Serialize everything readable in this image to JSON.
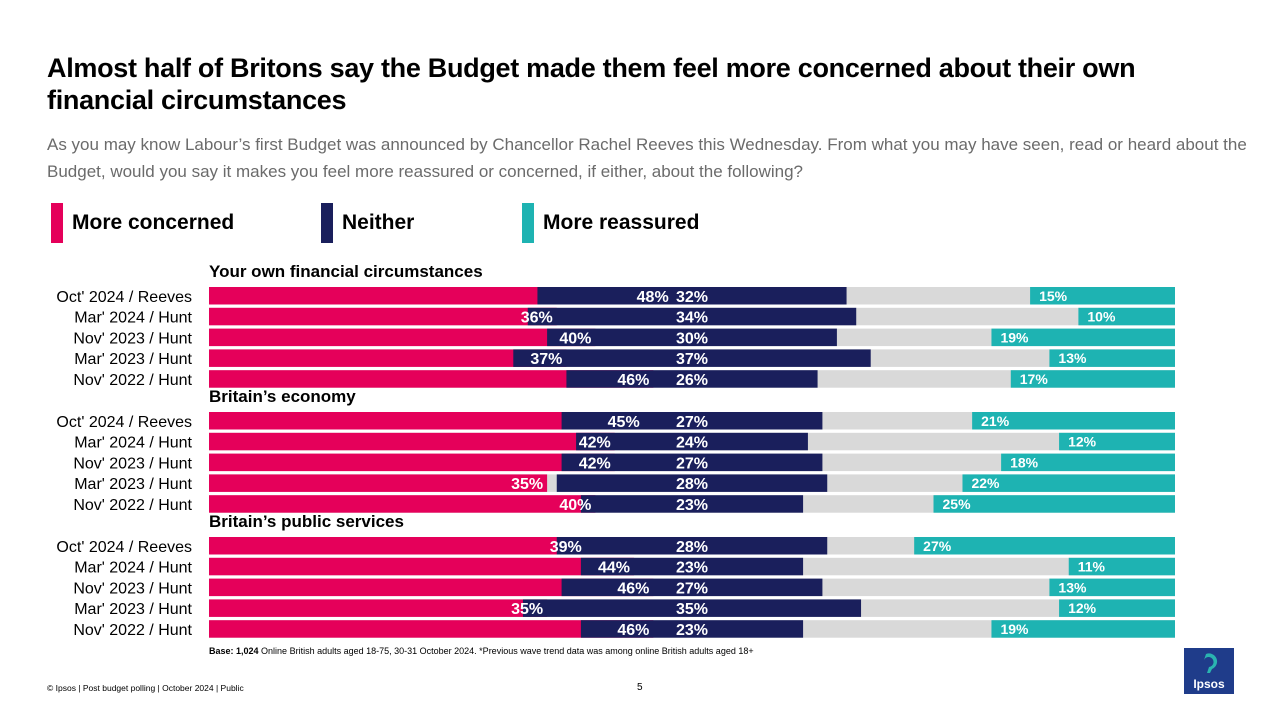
{
  "title": "Almost half of Britons say the Budget made them feel more concerned about their own financial circumstances",
  "subtitle": "As you may know Labour’s first Budget was announced by Chancellor Rachel Reeves this Wednesday.  From what you may have seen, read or heard about the Budget, would you say it makes you feel more reassured or concerned, if either, about the following?",
  "legend": [
    {
      "label": "More concerned",
      "color": "#e5005a"
    },
    {
      "label": "Neither",
      "color": "#1a1f5c"
    },
    {
      "label": "More reassured",
      "color": "#1eb3b2"
    }
  ],
  "colors": {
    "concerned": "#e5005a",
    "neither": "#1a1f5c",
    "reassured": "#1eb3b2",
    "gap": "#d9d9d9"
  },
  "chart_data": {
    "type": "bar",
    "orientation": "horizontal",
    "stacking": "diverging-stacked",
    "xlim": [
      -50,
      50
    ],
    "series_names": [
      "More concerned",
      "Neither",
      "More reassured"
    ],
    "groups": [
      {
        "title": "Your own financial circumstances",
        "rows": [
          {
            "label": "Oct' 2024 / Reeves",
            "concerned": 48,
            "neither": 32,
            "reassured": 15
          },
          {
            "label": "Mar' 2024 / Hunt",
            "concerned": 36,
            "neither": 34,
            "reassured": 10
          },
          {
            "label": "Nov' 2023 / Hunt",
            "concerned": 40,
            "neither": 30,
            "reassured": 19
          },
          {
            "label": "Mar' 2023 / Hunt",
            "concerned": 37,
            "neither": 37,
            "reassured": 13
          },
          {
            "label": "Nov' 2022 / Hunt",
            "concerned": 46,
            "neither": 26,
            "reassured": 17
          }
        ]
      },
      {
        "title": "Britain’s economy",
        "rows": [
          {
            "label": "Oct' 2024 / Reeves",
            "concerned": 45,
            "neither": 27,
            "reassured": 21
          },
          {
            "label": "Mar' 2024 / Hunt",
            "concerned": 42,
            "neither": 24,
            "reassured": 12
          },
          {
            "label": "Nov' 2023 / Hunt",
            "concerned": 42,
            "neither": 27,
            "reassured": 18
          },
          {
            "label": "Mar' 2023 / Hunt",
            "concerned": 35,
            "neither": 28,
            "reassured": 22
          },
          {
            "label": "Nov' 2022 / Hunt",
            "concerned": 40,
            "neither": 23,
            "reassured": 25
          }
        ]
      },
      {
        "title": "Britain’s public services",
        "rows": [
          {
            "label": "Oct' 2024 / Reeves",
            "concerned": 39,
            "neither": 28,
            "reassured": 27
          },
          {
            "label": "Mar' 2024 / Hunt",
            "concerned": 44,
            "neither": 23,
            "reassured": 11
          },
          {
            "label": "Nov' 2023 / Hunt",
            "concerned": 46,
            "neither": 27,
            "reassured": 13
          },
          {
            "label": "Mar' 2023 / Hunt",
            "concerned": 35,
            "neither": 35,
            "reassured": 12
          },
          {
            "label": "Nov' 2022 / Hunt",
            "concerned": 46,
            "neither": 23,
            "reassured": 19
          }
        ]
      }
    ]
  },
  "base_note": {
    "label": "Base: 1,024",
    "text": " Online British adults aged 18-75, 30-31 October 2024. *Previous wave trend data was among online British adults aged 18+"
  },
  "footer": "© Ipsos | Post budget polling | October 2024 | Public",
  "page_number": "5",
  "logo_text": "Ipsos"
}
